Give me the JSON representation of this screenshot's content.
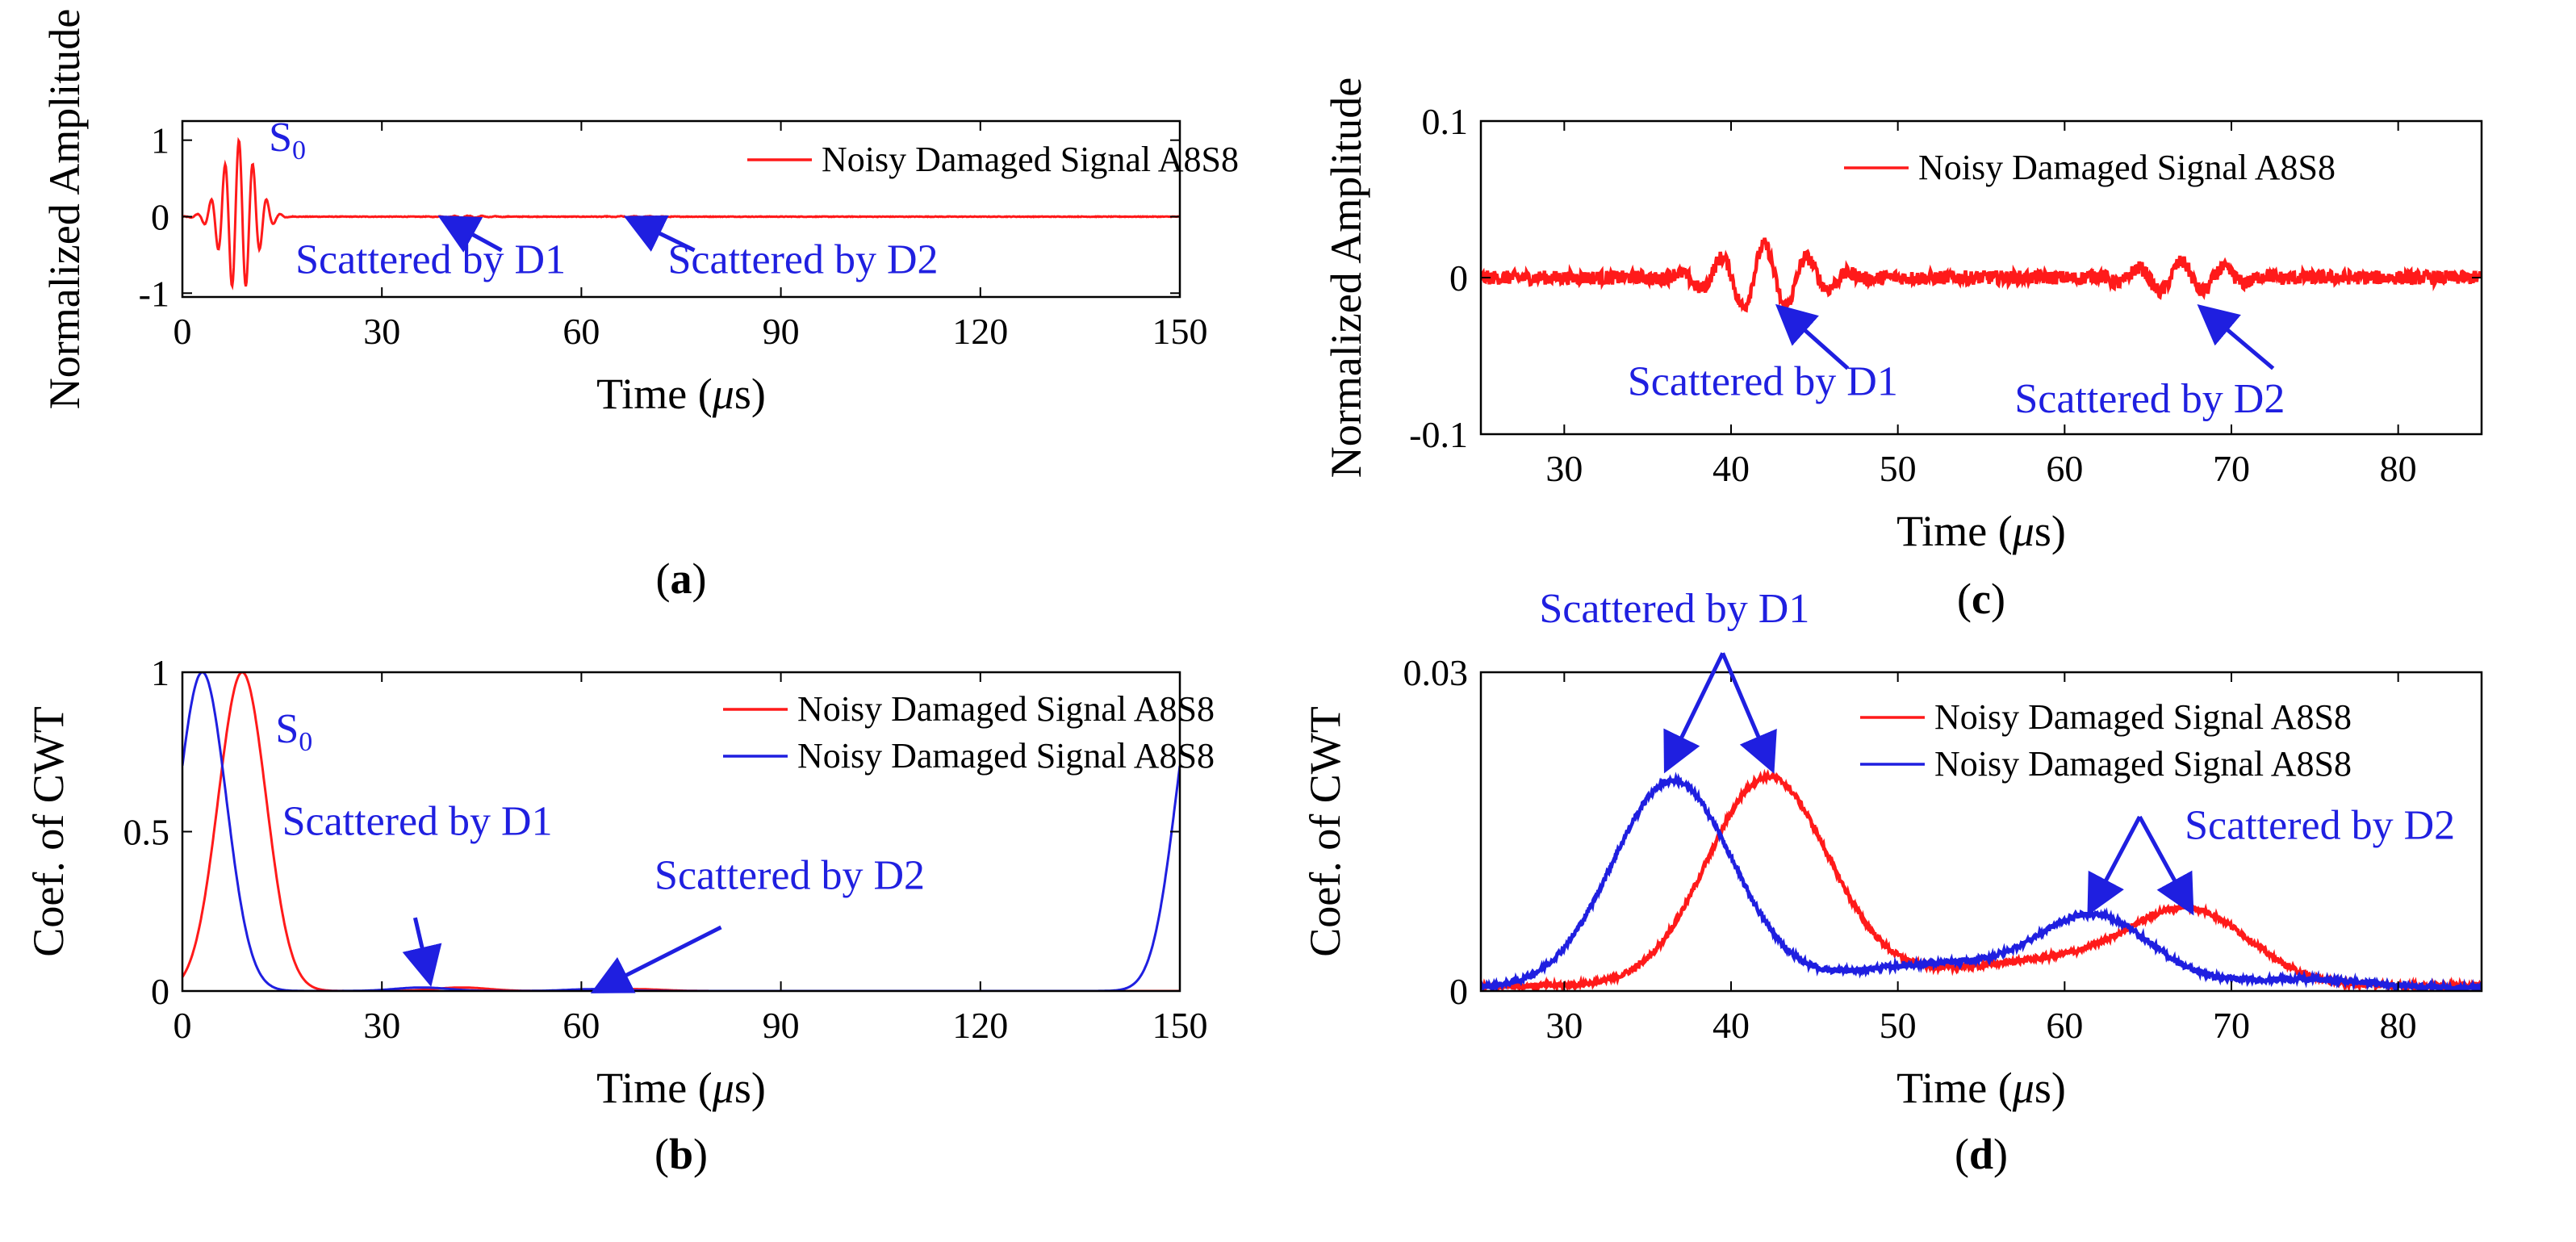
{
  "colors": {
    "red": "#ff1a1a",
    "blue": "#1f1fe0",
    "axis": "#000000"
  },
  "chart_data": [
    {
      "id": "a",
      "type": "line",
      "sublabel": {
        "pre": "(",
        "bold": "a",
        "post": ")"
      },
      "xlabel": {
        "pre": "Time (",
        "mu": "μ",
        "post": "s)"
      },
      "ylabel": "Normalized Amplitude",
      "xlim": [
        0,
        150
      ],
      "ylim": [
        -1.05,
        1.25
      ],
      "xticks": [
        0,
        30,
        60,
        90,
        120,
        150
      ],
      "xtick_labels": [
        "0",
        "30",
        "60",
        "90",
        "120",
        "150"
      ],
      "yticks": [
        -1,
        0,
        1
      ],
      "ytick_labels": [
        "-1",
        "0",
        "1"
      ],
      "series": [
        {
          "name": "Noisy Damaged Signal A8S8",
          "color": "red",
          "kind": "burst",
          "center": 8.5,
          "sigma": 2.4,
          "period": 2.1,
          "amp": 1.0,
          "start": 3,
          "echoes": [
            {
              "center": 43,
              "sigma": 3,
              "period": 2.1,
              "amp": 0.012
            },
            {
              "center": 68,
              "sigma": 3,
              "period": 2.1,
              "amp": 0.008
            }
          ],
          "noise": 0.004
        }
      ],
      "legend": [
        "Noisy Damaged Signal A8S8"
      ],
      "annotations": [
        {
          "text": "S",
          "sub": "0",
          "at": [
            13,
            0.86
          ]
        },
        {
          "text": "Scattered by D1",
          "at": [
            17,
            -0.74
          ],
          "arrow_from": [
            48,
            -0.44
          ],
          "arrow_to": [
            40,
            -0.06
          ]
        },
        {
          "text": "Scattered by D2",
          "at": [
            73,
            -0.74
          ],
          "arrow_from": [
            77,
            -0.44
          ],
          "arrow_to": [
            68,
            -0.06
          ]
        }
      ]
    },
    {
      "id": "b",
      "type": "line",
      "sublabel": {
        "pre": "(",
        "bold": "b",
        "post": ")"
      },
      "xlabel": {
        "pre": "Time (",
        "mu": "μ",
        "post": "s)"
      },
      "ylabel": "Coef. of CWT",
      "xlim": [
        0,
        150
      ],
      "ylim": [
        0,
        1
      ],
      "xticks": [
        0,
        30,
        60,
        90,
        120,
        150
      ],
      "xtick_labels": [
        "0",
        "30",
        "60",
        "90",
        "120",
        "150"
      ],
      "yticks": [
        0,
        0.5,
        1
      ],
      "ytick_labels": [
        "0",
        "0.5",
        "1"
      ],
      "series": [
        {
          "name": "Noisy Damaged Signal A8S8",
          "color": "red",
          "kind": "envelope",
          "peaks": [
            {
              "center": 9,
              "sigma": 3.6,
              "amp": 1.0
            },
            {
              "center": 42,
              "sigma": 4,
              "amp": 0.011
            },
            {
              "center": 68,
              "sigma": 4,
              "amp": 0.006
            }
          ]
        },
        {
          "name": "Noisy Damaged Signal A8S8",
          "color": "blue",
          "kind": "envelope",
          "peaks": [
            {
              "center": 3,
              "sigma": 3.6,
              "amp": 1.0
            },
            {
              "center": 36,
              "sigma": 4,
              "amp": 0.011
            },
            {
              "center": 62,
              "sigma": 4,
              "amp": 0.006
            },
            {
              "center": 153,
              "sigma": 3.6,
              "amp": 1.0
            }
          ]
        }
      ],
      "legend": [
        "Noisy Damaged Signal A8S8",
        "Noisy Damaged Signal A8S8"
      ],
      "annotations": [
        {
          "text": "S",
          "sub": "0",
          "at": [
            14,
            0.78
          ]
        },
        {
          "text": "Scattered by D1",
          "at": [
            15,
            0.49
          ],
          "arrow_from": [
            35,
            0.23
          ],
          "arrow_to": [
            37,
            0.05
          ]
        },
        {
          "text": "Scattered by D2",
          "at": [
            71,
            0.32
          ],
          "arrow_from": [
            81,
            0.2
          ],
          "arrow_to": [
            63,
            0.01
          ]
        }
      ]
    },
    {
      "id": "c",
      "type": "line",
      "sublabel": {
        "pre": "(",
        "bold": "c",
        "post": ")"
      },
      "xlabel": {
        "pre": "Time (",
        "mu": "μ",
        "post": "s)"
      },
      "ylabel": "Normalized Amplitude",
      "xlim": [
        25,
        85
      ],
      "ylim": [
        -0.1,
        0.1
      ],
      "xticks": [
        30,
        40,
        50,
        60,
        70,
        80
      ],
      "xtick_labels": [
        "30",
        "40",
        "50",
        "60",
        "70",
        "80"
      ],
      "yticks": [
        -0.1,
        0,
        0.1
      ],
      "ytick_labels": [
        "-0.1",
        "0",
        "0.1"
      ],
      "series": [
        {
          "name": "Noisy Damaged Signal A8S8",
          "color": "red",
          "kind": "burst",
          "center": 42,
          "sigma": 2.6,
          "period": 2.6,
          "amp": 0.021,
          "start": 25,
          "echoes": [
            {
              "center": 67,
              "sigma": 2.6,
              "period": 2.6,
              "amp": 0.01
            }
          ],
          "noise": 0.0045
        }
      ],
      "legend": [
        "Noisy Damaged Signal A8S8"
      ],
      "annotations": [
        {
          "text": "Scattered by D1",
          "at": [
            33.8,
            -0.075
          ],
          "arrow_from": [
            47,
            -0.058
          ],
          "arrow_to": [
            43.2,
            -0.022
          ]
        },
        {
          "text": "Scattered by D2",
          "at": [
            57,
            -0.086
          ],
          "arrow_from": [
            72.5,
            -0.058
          ],
          "arrow_to": [
            68.5,
            -0.022
          ]
        }
      ]
    },
    {
      "id": "d",
      "type": "line",
      "sublabel": {
        "pre": "(",
        "bold": "d",
        "post": ")"
      },
      "xlabel": {
        "pre": "Time (",
        "mu": "μ",
        "post": "s)"
      },
      "ylabel": "Coef. of CWT",
      "xlim": [
        25,
        85
      ],
      "ylim": [
        0,
        0.03
      ],
      "xticks": [
        30,
        40,
        50,
        60,
        70,
        80
      ],
      "xtick_labels": [
        "30",
        "40",
        "50",
        "60",
        "70",
        "80"
      ],
      "yticks": [
        0,
        0.03
      ],
      "ytick_labels": [
        "0",
        "0.03"
      ],
      "series": [
        {
          "name": "Noisy Damaged Signal A8S8",
          "color": "red",
          "kind": "envelope",
          "base": 0.0005,
          "peaks": [
            {
              "center": 42.2,
              "sigma": 3.6,
              "amp": 0.0195
            },
            {
              "center": 54,
              "sigma": 6,
              "amp": 0.0012
            },
            {
              "center": 60,
              "sigma": 4,
              "amp": 0.0015
            },
            {
              "center": 67.5,
              "sigma": 3.6,
              "amp": 0.007
            }
          ],
          "noise": 0.00025
        },
        {
          "name": "Noisy Damaged Signal A8S8",
          "color": "blue",
          "kind": "envelope",
          "base": 0.0003,
          "peaks": [
            {
              "center": 36.5,
              "sigma": 3.6,
              "amp": 0.0195
            },
            {
              "center": 52,
              "sigma": 5,
              "amp": 0.0022
            },
            {
              "center": 61.8,
              "sigma": 3.4,
              "amp": 0.0066
            },
            {
              "center": 74,
              "sigma": 4,
              "amp": 0.0008
            }
          ],
          "noise": 0.00025
        }
      ],
      "legend": [
        "Noisy Damaged Signal A8S8",
        "Noisy Damaged Signal A8S8"
      ],
      "annotations": [
        {
          "text": "Scattered by D1",
          "at": [
            28.5,
            0.0347
          ],
          "arrow_from": [
            39.5,
            0.0318
          ],
          "arrow_to": [
            36.3,
            0.0215
          ],
          "arrow2_to": [
            42.3,
            0.0215
          ]
        },
        {
          "text": "Scattered by D2",
          "at": [
            67.2,
            0.0143
          ],
          "arrow_from": [
            64.5,
            0.0164
          ],
          "arrow_to": [
            61.7,
            0.0081
          ],
          "arrow2_to": [
            67.4,
            0.0081
          ]
        }
      ]
    }
  ]
}
